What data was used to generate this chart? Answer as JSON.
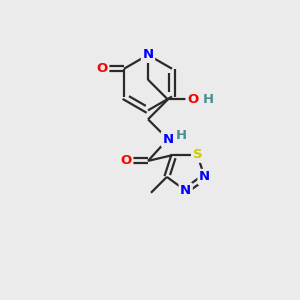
{
  "background_color": "#ebebeb",
  "bond_color": "#2a2a2a",
  "atom_colors": {
    "N": "#0000ff",
    "O": "#ff0000",
    "S": "#cccc00",
    "C": "#2a2a2a",
    "H": "#4a8f8f"
  },
  "title": "",
  "figsize": [
    3.0,
    3.0
  ],
  "dpi": 100
}
